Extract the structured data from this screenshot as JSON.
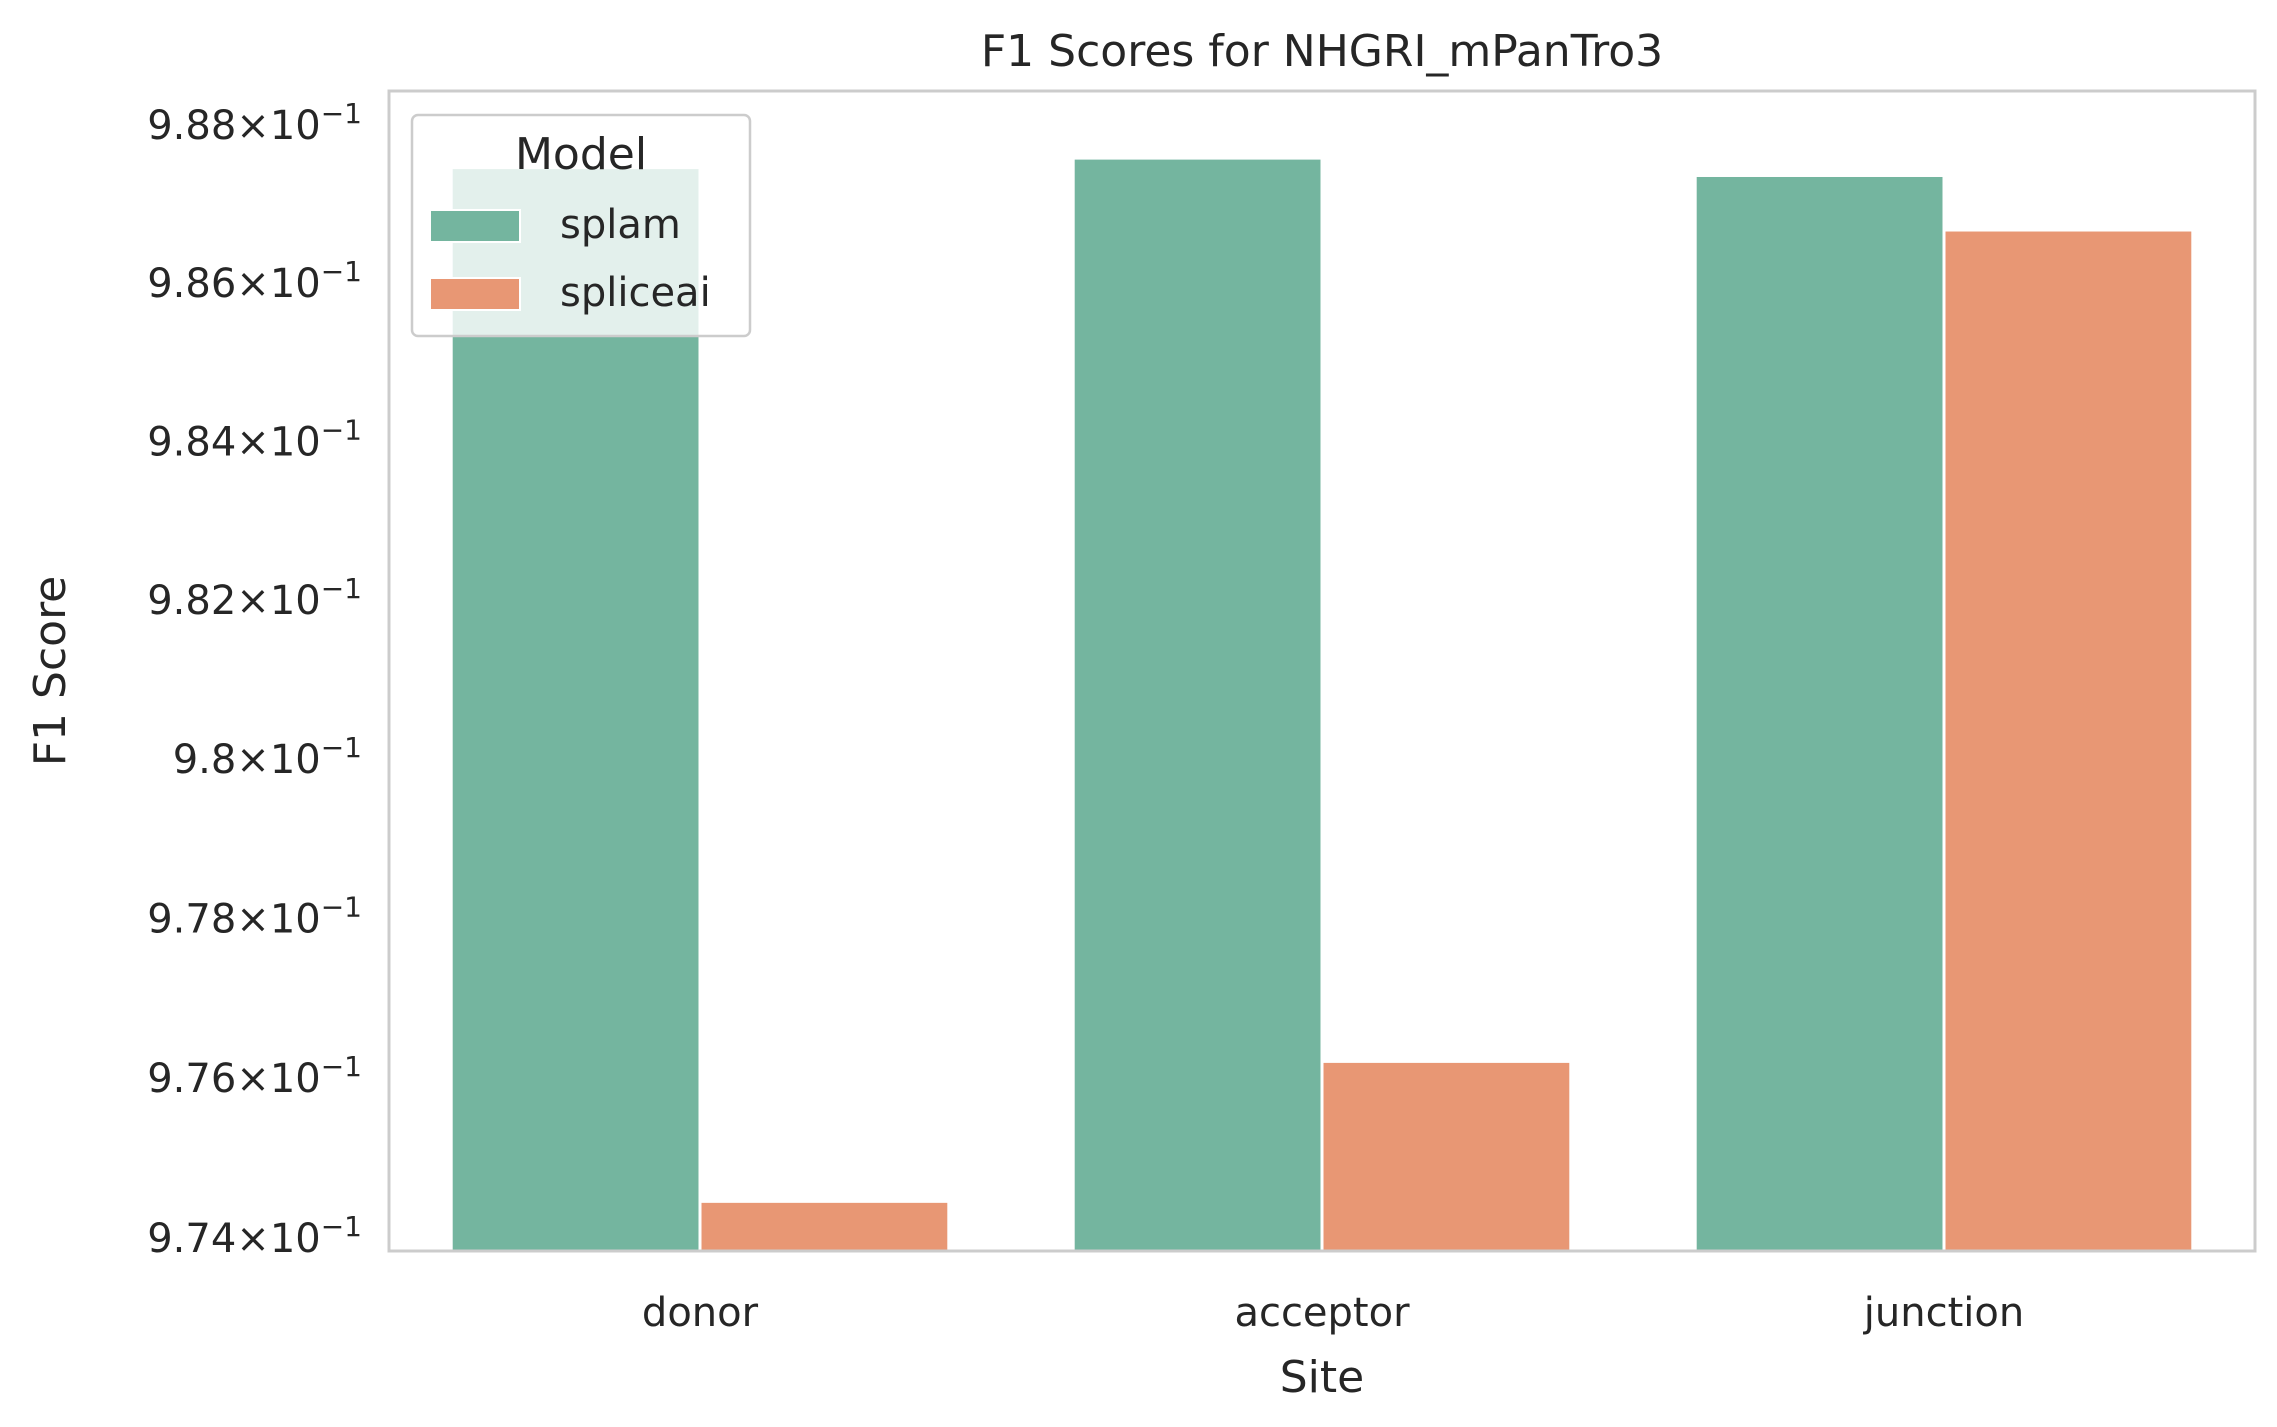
{
  "chart_data": {
    "type": "bar",
    "title": "F1 Scores for NHGRI_mPanTro3",
    "xlabel": "Site",
    "ylabel": "F1 Score",
    "categories": [
      "donor",
      "acceptor",
      "junction"
    ],
    "series": [
      {
        "name": "splam",
        "values": [
          0.98746,
          0.98758,
          0.98736
        ],
        "color": "#74b59f"
      },
      {
        "name": "spliceai",
        "values": [
          0.97446,
          0.97621,
          0.98667
        ],
        "color": "#e89774"
      }
    ],
    "ylim": [
      0.97384,
      0.98843
    ],
    "y_scale": "log",
    "y_ticks": [
      0.974,
      0.976,
      0.978,
      0.98,
      0.982,
      0.984,
      0.986,
      0.988
    ],
    "y_tick_labels": [
      {
        "mantissa": "9.74",
        "exponent": "−1"
      },
      {
        "mantissa": "9.76",
        "exponent": "−1"
      },
      {
        "mantissa": "9.78",
        "exponent": "−1"
      },
      {
        "mantissa": "9.8",
        "exponent": "−1"
      },
      {
        "mantissa": "9.82",
        "exponent": "−1"
      },
      {
        "mantissa": "9.84",
        "exponent": "−1"
      },
      {
        "mantissa": "9.86",
        "exponent": "−1"
      },
      {
        "mantissa": "9.88",
        "exponent": "−1"
      }
    ],
    "legend": {
      "title": "Model",
      "position": "upper-left"
    },
    "grid": false
  }
}
